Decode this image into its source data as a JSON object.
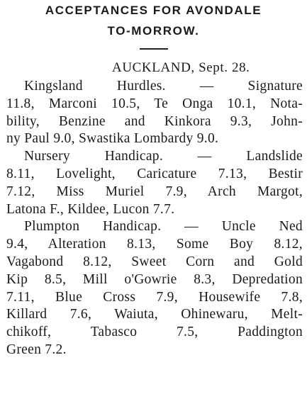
{
  "headline": {
    "lines": [
      "ACCEPTANCES FOR AVONDALE",
      "TO-MORROW."
    ]
  },
  "dateline": "AUCKLAND, Sept. 28.",
  "paragraphs": [
    {
      "lines": [
        "Kingsland Hurdles. — Signature",
        "11.8, Marconi 10.5, Te Onga 10.1, Nota-",
        "bility, Benzine and Kinkora 9.3, John-",
        "ny Paul 9.0, Swastika Lombardy 9.0."
      ]
    },
    {
      "lines": [
        "Nursery Handicap. — Landslide",
        "8.11, Lovelight, Caricature 7.13, Bestir",
        "7.12, Miss Muriel 7.9, Arch Margot,",
        "Latona F., Kildee, Lucon 7.7."
      ]
    },
    {
      "lines": [
        "Plumpton Handicap. — Uncle Ned",
        "9.4, Alteration 8.13, Some Boy 8.12,",
        "Vagabond 8.12, Sweet Corn and Gold",
        "Kip 8.5, Mill o'Gowrie 8.3, Depredation",
        "7.11, Blue Cross 7.9, Housewife 7.8,",
        "Killard 7.6, Waiuta, Ohinewaru, Melt-",
        "chikoff, Tabasco 7.5, Paddington",
        "Green 7.2."
      ]
    }
  ]
}
